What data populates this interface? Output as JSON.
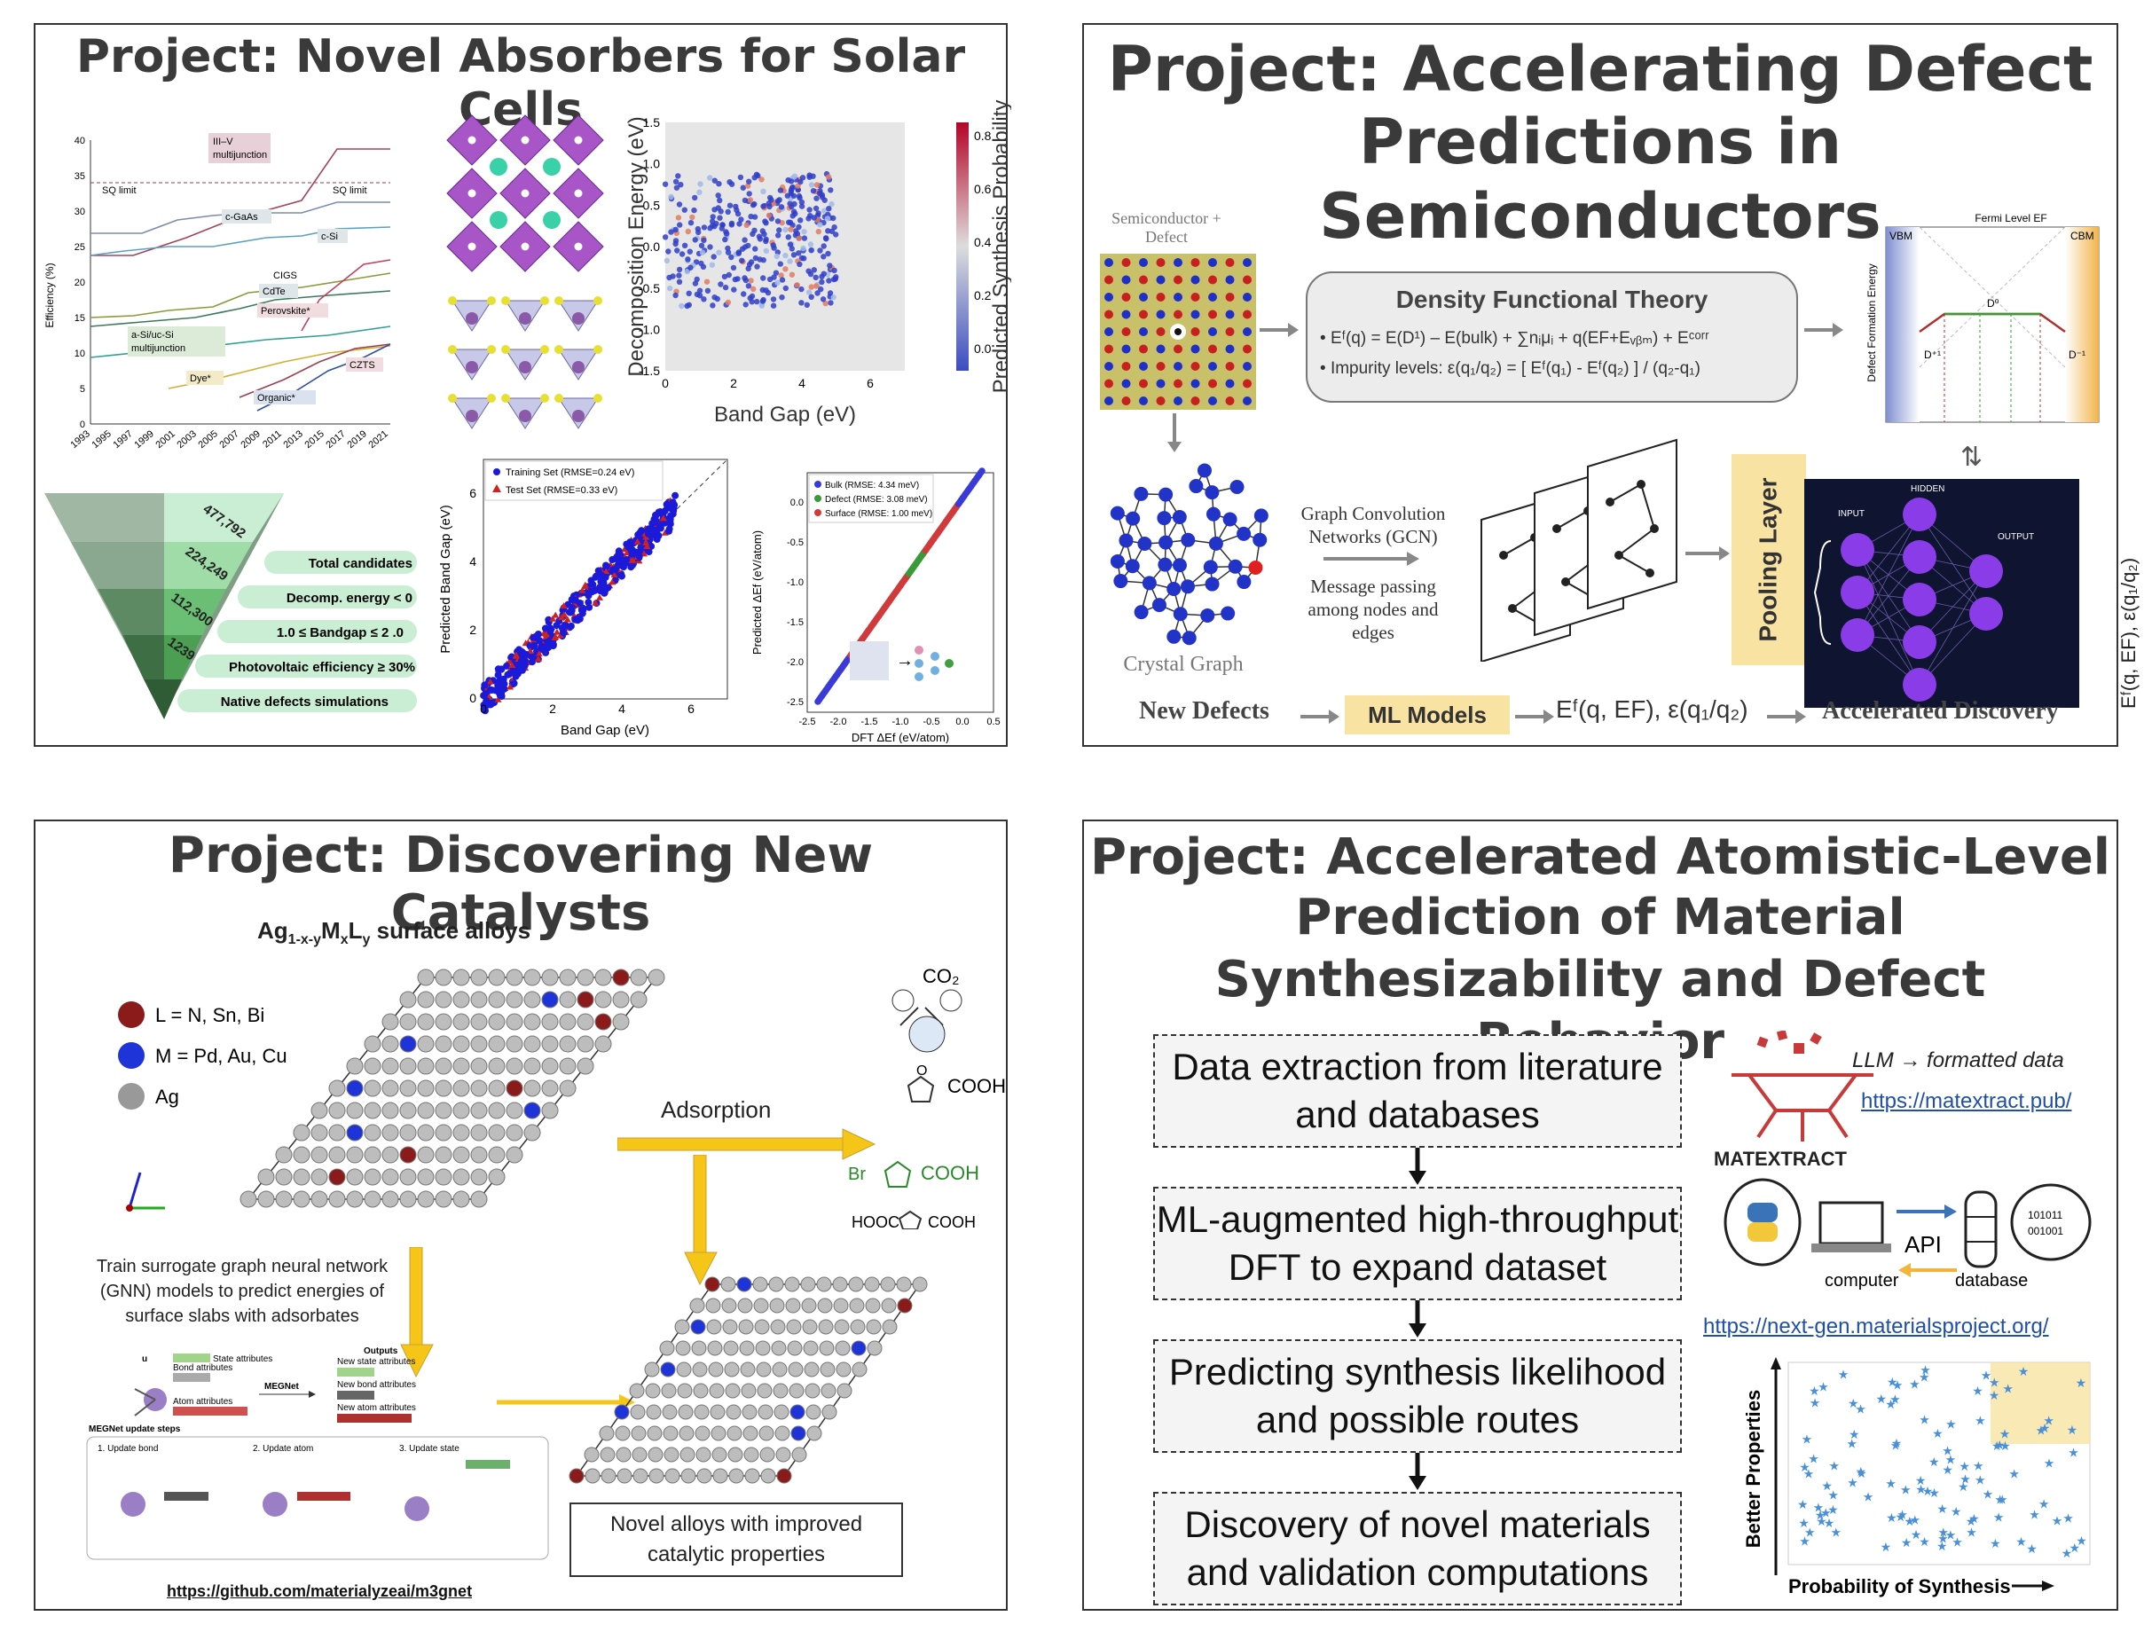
{
  "panels": {
    "solar": {
      "title": "Project: Novel Absorbers for Solar Cells",
      "efficiency_chart": {
        "ylabel": "Efficiency (%)",
        "yticks": [
          "0",
          "5",
          "10",
          "15",
          "20",
          "25",
          "30",
          "35",
          "40"
        ],
        "xticks": [
          "1993",
          "1995",
          "1997",
          "1999",
          "2001",
          "2003",
          "2005",
          "2007",
          "2009",
          "2011",
          "2013",
          "2015",
          "2017",
          "2019",
          "2021"
        ],
        "labels": [
          "III–V multijunction",
          "SQ limit",
          "SQ limit",
          "c-GaAs",
          "c-Si",
          "CIGS",
          "CdTe",
          "Perovskite*",
          "a-Si/uc-Si multijunction",
          "Dye*",
          "CZTS",
          "Organic*"
        ]
      },
      "scatter": {
        "ylabel": "Decomposition Energy (eV)",
        "xlabel": "Band Gap (eV)",
        "cbar_label": "Predicted Synthesis Probability",
        "yticks": [
          "1.5",
          "1.0",
          "0.5",
          "0.0",
          "-0.5",
          "-1.0",
          "-1.5"
        ],
        "xticks": [
          "0",
          "2",
          "4",
          "6"
        ],
        "cbar_ticks": [
          "0.8",
          "0.6",
          "0.4",
          "0.2",
          "0.0"
        ]
      },
      "funnel": {
        "counts": [
          "477,792",
          "224,249",
          "112,300",
          "1239"
        ],
        "labels": [
          "Total candidates",
          "Decomp. energy < 0",
          "1.0 ≤ Bandgap ≤ 2 .0",
          "Photovoltaic efficiency ≥ 30%",
          "Native defects simulations"
        ]
      },
      "parity1": {
        "legend": [
          "Training Set (RMSE=0.24 eV)",
          "Test Set (RMSE=0.33 eV)"
        ],
        "xlabel": "Band Gap (eV)",
        "ylabel": "Predicted Band Gap (eV)",
        "ticks": [
          "0",
          "2",
          "4",
          "6"
        ]
      },
      "parity2": {
        "legend": [
          "Bulk (RMSE: 4.34 meV)",
          "Defect (RMSE: 3.08 meV)",
          "Surface (RMSE: 1.00 meV)"
        ],
        "xlabel": "DFT ΔEf (eV/atom)",
        "ylabel": "Predicted ΔEf (eV/atom)",
        "xticks": [
          "-2.5",
          "-2.0",
          "-1.5",
          "-1.0",
          "-0.5",
          "0.0",
          "0.5"
        ],
        "yticks": [
          "0.0",
          "-0.5",
          "-1.0",
          "-1.5",
          "-2.0",
          "-2.5"
        ]
      }
    },
    "defect": {
      "title_line1": "Project: Accelerating Defect",
      "title_line2": "Predictions in Semiconductors",
      "semi_label": "Semiconductor + Defect",
      "dft_title": "Density Functional Theory",
      "eq1": "Eᶠ(q) = E(D¹) – E(bulk) + ∑nᵢμᵢ + q(EF+Eᵥᵦₘ) + Eᶜᵒʳʳ",
      "eq2": "Impurity levels: ε(q₁/q₂) = [ Eᶠ(q₁) - Eᶠ(q₂) ] / (q₂-q₁)",
      "crystal_graph": "Crystal Graph",
      "gcn": "Graph Convolution Networks (GCN)",
      "message": "Message passing among nodes and edges",
      "pooling": "Pooling Layer",
      "nn": {
        "input": "INPUT",
        "hidden": "HIDDEN",
        "output": "OUTPUT"
      },
      "nn_out": "Eᶠ(q, EF), ε(q₁/q₂)",
      "fermi": {
        "title": "Fermi Level EF",
        "vbm": "VBM",
        "cbm": "CBM",
        "ylabel": "Defect Formation Energy",
        "d_plus": "D⁺¹",
        "d0": "D⁰",
        "d_minus": "D⁻¹"
      },
      "bottom": {
        "new_defects": "New Defects",
        "ml_models": "ML Models",
        "formula": "Eᶠ(q, EF), ε(q₁/q₂)",
        "accel": "Accelerated Discovery"
      }
    },
    "catalyst": {
      "title": "Project: Discovering New Catalysts",
      "alloy_title": "Ag1-x-yMxLy surface alloys",
      "legend": [
        "L = N, Sn, Bi",
        "M = Pd, Au, Cu",
        "Ag"
      ],
      "adsorption": "Adsorption",
      "molecules": [
        "CO₂",
        "COOH",
        "Br",
        "COOH",
        "HOOC",
        "COOH"
      ],
      "train_text": "Train surrogate graph neural network (GNN) models to predict energies of surface slabs with adsorbates",
      "megnet": {
        "state": "State attributes",
        "bond": "Bond attributes",
        "atom": "Atom attributes",
        "name": "MEGNet",
        "outputs": "Outputs",
        "new_state": "New state attributes",
        "new_bond": "New bond attributes",
        "new_atom": "New atom attributes",
        "update_title": "MEGNet update steps",
        "steps": [
          "1. Update bond",
          "2. Update atom",
          "3. Update state"
        ]
      },
      "novel": "Novel alloys with improved catalytic properties",
      "link": "https://github.com/materialyzeai/m3gnet"
    },
    "atomistic": {
      "title_lines": [
        "Project: Accelerated Atomistic-Level",
        "Prediction of Material",
        "Synthesizability and Defect Behavior"
      ],
      "steps": [
        "Data extraction from literature and databases",
        "ML-augmented high-throughput DFT to expand dataset",
        "Predicting synthesis likelihood and possible routes",
        "Discovery of novel materials and validation computations"
      ],
      "llm": "LLM → formatted data",
      "matextract_link": "https://matextract.pub/",
      "matextract_logo": "MATEXTRACT",
      "api": "API",
      "computer": "computer",
      "database": "database",
      "binary1": "101011",
      "binary2": "001001",
      "mp_link": "https://next-gen.materialsproject.org/",
      "ylabel": "Better Properties",
      "xlabel": "Probability of Synthesis"
    }
  },
  "colors": {
    "frame": "#333333",
    "yellow_box": "#f8e3a3",
    "nn_bg": "#0f1530",
    "neuron": "#8a3ce8"
  }
}
